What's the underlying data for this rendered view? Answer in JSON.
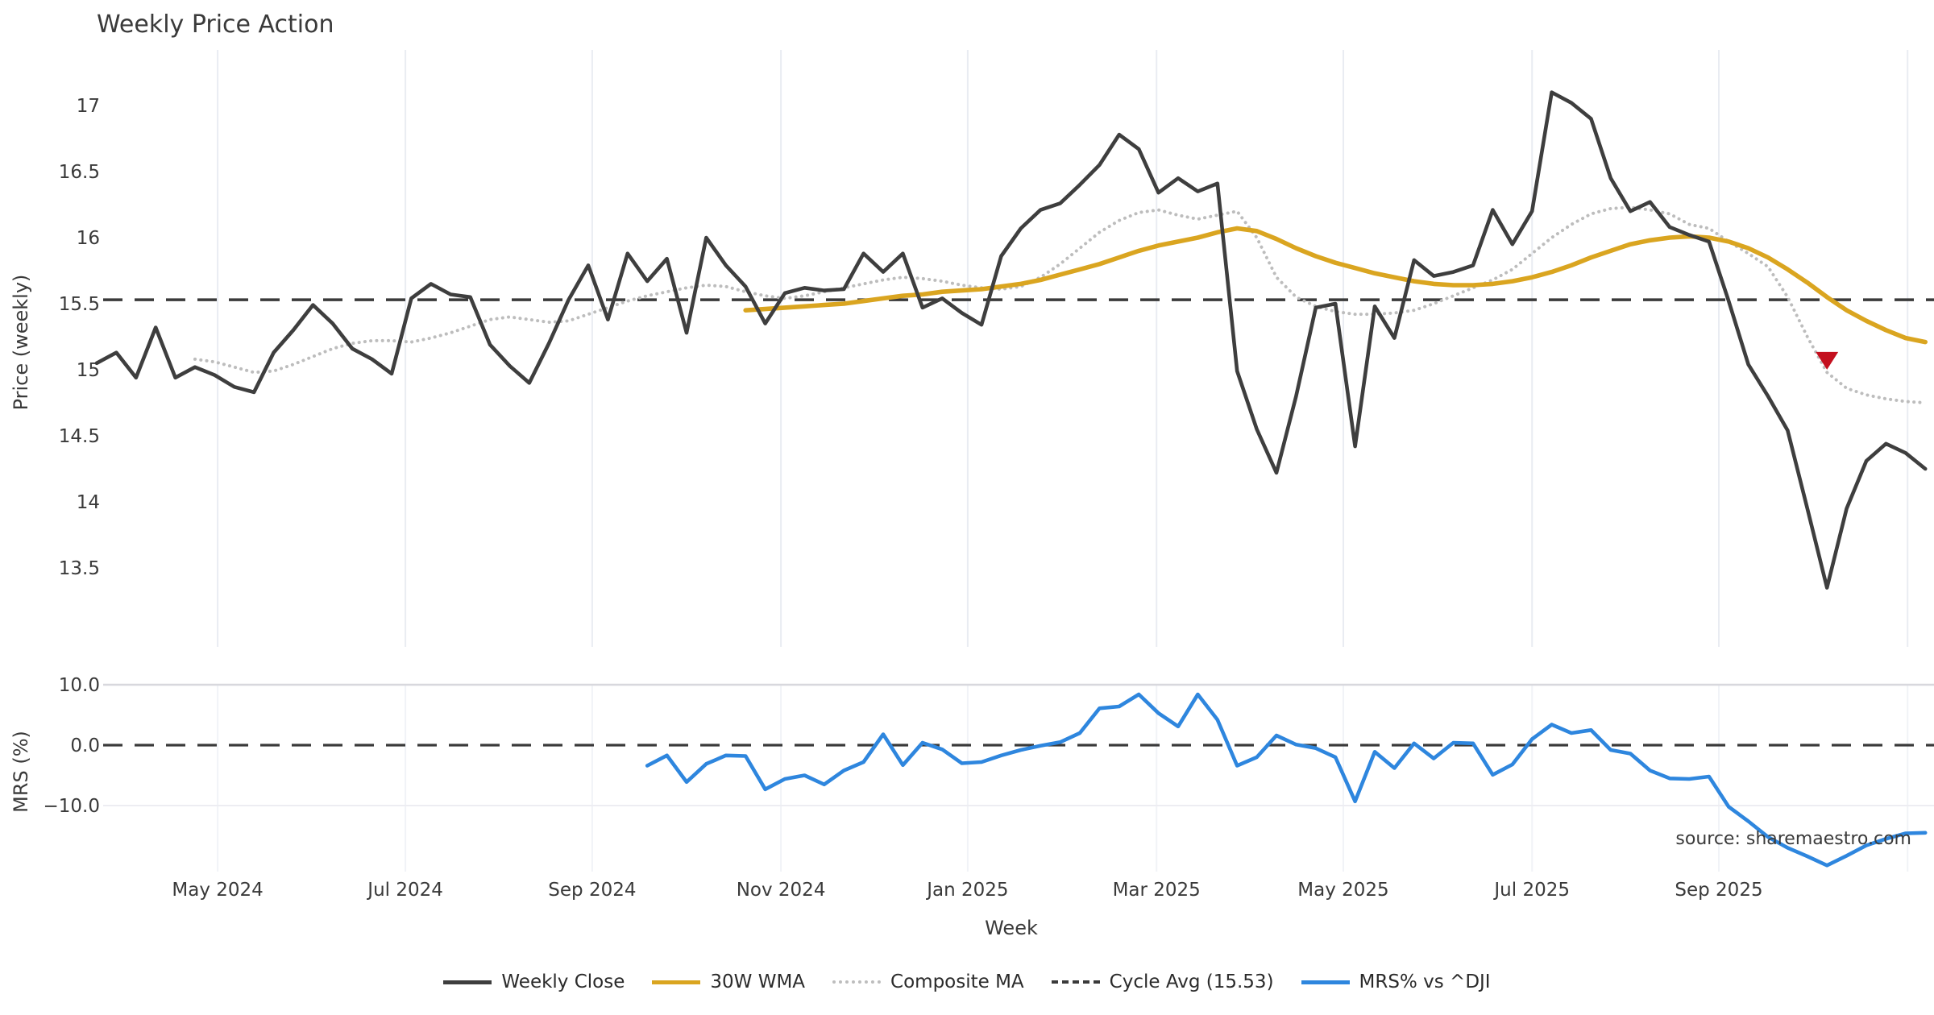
{
  "title": "Weekly Price Action",
  "source_note": "source: sharemaestro.com",
  "colors": {
    "weekly_close": "#3e3e3e",
    "wma": "#daa520",
    "composite": "#bdbdbd",
    "cycle_avg": "#3a3a3a",
    "mrs": "#2e86de",
    "marker": "#c40f1e",
    "grid_major": "#e9ecf2",
    "grid_faint": "#f1f3f7",
    "hline_top": "#d8d8dd",
    "hline_bottom": "#ededf2"
  },
  "legend": {
    "position": "bottom-center",
    "items": [
      {
        "label": "Weekly Close",
        "color": "#3e3e3e",
        "style": "solid"
      },
      {
        "label": "30W WMA",
        "color": "#daa520",
        "style": "solid"
      },
      {
        "label": "Composite MA",
        "color": "#bdbdbd",
        "style": "dotted"
      },
      {
        "label": "Cycle Avg (15.53)",
        "color": "#3a3a3a",
        "style": "dashed"
      },
      {
        "label": "MRS% vs ^DJI",
        "color": "#2e86de",
        "style": "solid"
      }
    ]
  },
  "chart_data": [
    {
      "type": "line",
      "panel": "price",
      "title": "Weekly Price Action",
      "xlabel": "Week",
      "ylabel": "Price (weekly)",
      "ylim": [
        13.1,
        17.45
      ],
      "yticks": [
        17,
        16.5,
        16,
        15.5,
        15,
        14.5,
        14,
        13.5
      ],
      "grid": "vertical",
      "x_unit": "week_index",
      "x_range": [
        0,
        93
      ],
      "xticks": [
        {
          "pos": 6.15,
          "label": "May 2024"
        },
        {
          "pos": 15.7,
          "label": "Jul 2024"
        },
        {
          "pos": 25.2,
          "label": "Sep 2024"
        },
        {
          "pos": 34.8,
          "label": "Nov 2024"
        },
        {
          "pos": 44.3,
          "label": "Jan 2025"
        },
        {
          "pos": 53.9,
          "label": "Mar 2025"
        },
        {
          "pos": 63.4,
          "label": "May 2025"
        },
        {
          "pos": 73.0,
          "label": "Jul 2025"
        },
        {
          "pos": 82.5,
          "label": "Sep 2025"
        }
      ],
      "grid_extra_pos": [
        92.1
      ],
      "cycle_avg": 15.53,
      "marker": {
        "shape": "triangle-down",
        "color": "#c40f1e",
        "week": 88,
        "price": 15.08
      },
      "series": [
        {
          "name": "Weekly Close",
          "color": "#3e3e3e",
          "style": "solid",
          "width": 4.6,
          "start_week": 0,
          "values": [
            15.05,
            15.13,
            14.94,
            15.32,
            14.94,
            15.02,
            14.96,
            14.87,
            14.83,
            15.13,
            15.3,
            15.49,
            15.35,
            15.16,
            15.08,
            14.97,
            15.54,
            15.65,
            15.57,
            15.55,
            15.19,
            15.03,
            14.9,
            15.2,
            15.53,
            15.79,
            15.38,
            15.88,
            15.67,
            15.84,
            15.28,
            16.0,
            15.79,
            15.63,
            15.35,
            15.58,
            15.62,
            15.6,
            15.61,
            15.88,
            15.74,
            15.88,
            15.47,
            15.54,
            15.43,
            15.34,
            15.86,
            16.07,
            16.21,
            16.26,
            16.4,
            16.55,
            16.78,
            16.67,
            16.34,
            16.45,
            16.35,
            16.41,
            14.99,
            14.55,
            14.22,
            14.8,
            15.47,
            15.5,
            14.42,
            15.48,
            15.24,
            15.83,
            15.71,
            15.74,
            15.79,
            16.21,
            15.95,
            16.2,
            17.1,
            17.02,
            16.9,
            16.45,
            16.2,
            16.27,
            16.08,
            16.02,
            15.97,
            15.52,
            15.04,
            14.8,
            14.54,
            13.95,
            13.35,
            13.95,
            14.31,
            14.44,
            14.37,
            14.25
          ]
        },
        {
          "name": "30W WMA",
          "color": "#daa520",
          "style": "solid",
          "width": 5.6,
          "start_week": 33,
          "values": [
            15.45,
            15.46,
            15.47,
            15.48,
            15.49,
            15.5,
            15.52,
            15.54,
            15.56,
            15.57,
            15.59,
            15.6,
            15.61,
            15.63,
            15.65,
            15.68,
            15.72,
            15.76,
            15.8,
            15.85,
            15.9,
            15.94,
            15.97,
            16.0,
            16.04,
            16.07,
            16.05,
            15.99,
            15.92,
            15.86,
            15.81,
            15.77,
            15.73,
            15.7,
            15.67,
            15.65,
            15.64,
            15.64,
            15.65,
            15.67,
            15.7,
            15.74,
            15.79,
            15.85,
            15.9,
            15.95,
            15.98,
            16.0,
            16.01,
            16.0,
            15.97,
            15.92,
            15.85,
            15.76,
            15.66,
            15.55,
            15.45,
            15.37,
            15.3,
            15.24,
            15.21
          ]
        },
        {
          "name": "Composite MA",
          "color": "#bdbdbd",
          "style": "dotted",
          "width": 4.0,
          "start_week": 5,
          "values": [
            15.08,
            15.06,
            15.02,
            14.98,
            14.99,
            15.04,
            15.1,
            15.16,
            15.2,
            15.22,
            15.22,
            15.21,
            15.24,
            15.28,
            15.33,
            15.38,
            15.4,
            15.38,
            15.36,
            15.37,
            15.42,
            15.47,
            15.52,
            15.56,
            15.59,
            15.62,
            15.64,
            15.63,
            15.59,
            15.56,
            15.54,
            15.56,
            15.59,
            15.62,
            15.65,
            15.68,
            15.7,
            15.69,
            15.67,
            15.64,
            15.62,
            15.61,
            15.63,
            15.7,
            15.8,
            15.92,
            16.04,
            16.13,
            16.19,
            16.21,
            16.17,
            16.14,
            16.17,
            16.2,
            16.0,
            15.7,
            15.55,
            15.48,
            15.44,
            15.42,
            15.42,
            15.43,
            15.45,
            15.5,
            15.56,
            15.62,
            15.68,
            15.76,
            15.88,
            16.0,
            16.1,
            16.18,
            16.22,
            16.23,
            16.21,
            16.18,
            16.1,
            16.07,
            15.97,
            15.88,
            15.78,
            15.55,
            15.25,
            14.98,
            14.86,
            14.81,
            14.78,
            14.76,
            14.75
          ]
        },
        {
          "name": "Cycle Avg (15.53)",
          "color": "#3a3a3a",
          "style": "dashed",
          "width": 3.5,
          "value": 15.53
        }
      ]
    },
    {
      "type": "line",
      "panel": "mrs",
      "ylabel": "MRS (%)",
      "ylim": [
        -21.5,
        11.3
      ],
      "yticks": [
        10.0,
        0.0,
        -10.0
      ],
      "ytick_labels": [
        "10.0",
        "0.0",
        "−10.0"
      ],
      "zero_line": {
        "value": 0,
        "style": "dashed",
        "color": "#3a3a3a"
      },
      "series": [
        {
          "name": "MRS% vs ^DJI",
          "color": "#2e86de",
          "style": "solid",
          "width": 4.6,
          "start_week": 28,
          "values": [
            -3.4,
            -1.7,
            -6.1,
            -3.1,
            -1.7,
            -1.8,
            -7.3,
            -5.6,
            -5.0,
            -6.5,
            -4.2,
            -2.8,
            1.8,
            -3.3,
            0.4,
            -0.7,
            -3.0,
            -2.8,
            -1.7,
            -0.8,
            -0.1,
            0.5,
            2.0,
            6.1,
            6.4,
            8.4,
            5.3,
            3.1,
            8.4,
            4.2,
            -3.4,
            -2.0,
            1.6,
            0.1,
            -0.5,
            -2.0,
            -9.3,
            -1.1,
            -3.8,
            0.3,
            -2.2,
            0.4,
            0.3,
            -4.9,
            -3.2,
            1.0,
            3.4,
            2.0,
            2.5,
            -0.8,
            -1.4,
            -4.2,
            -5.5,
            -5.6,
            -5.2,
            -10.2,
            -12.6,
            -15.2,
            -17.0,
            -18.4,
            -19.9,
            -18.3,
            -16.6,
            -15.5,
            -14.6,
            -14.5
          ]
        }
      ]
    }
  ]
}
